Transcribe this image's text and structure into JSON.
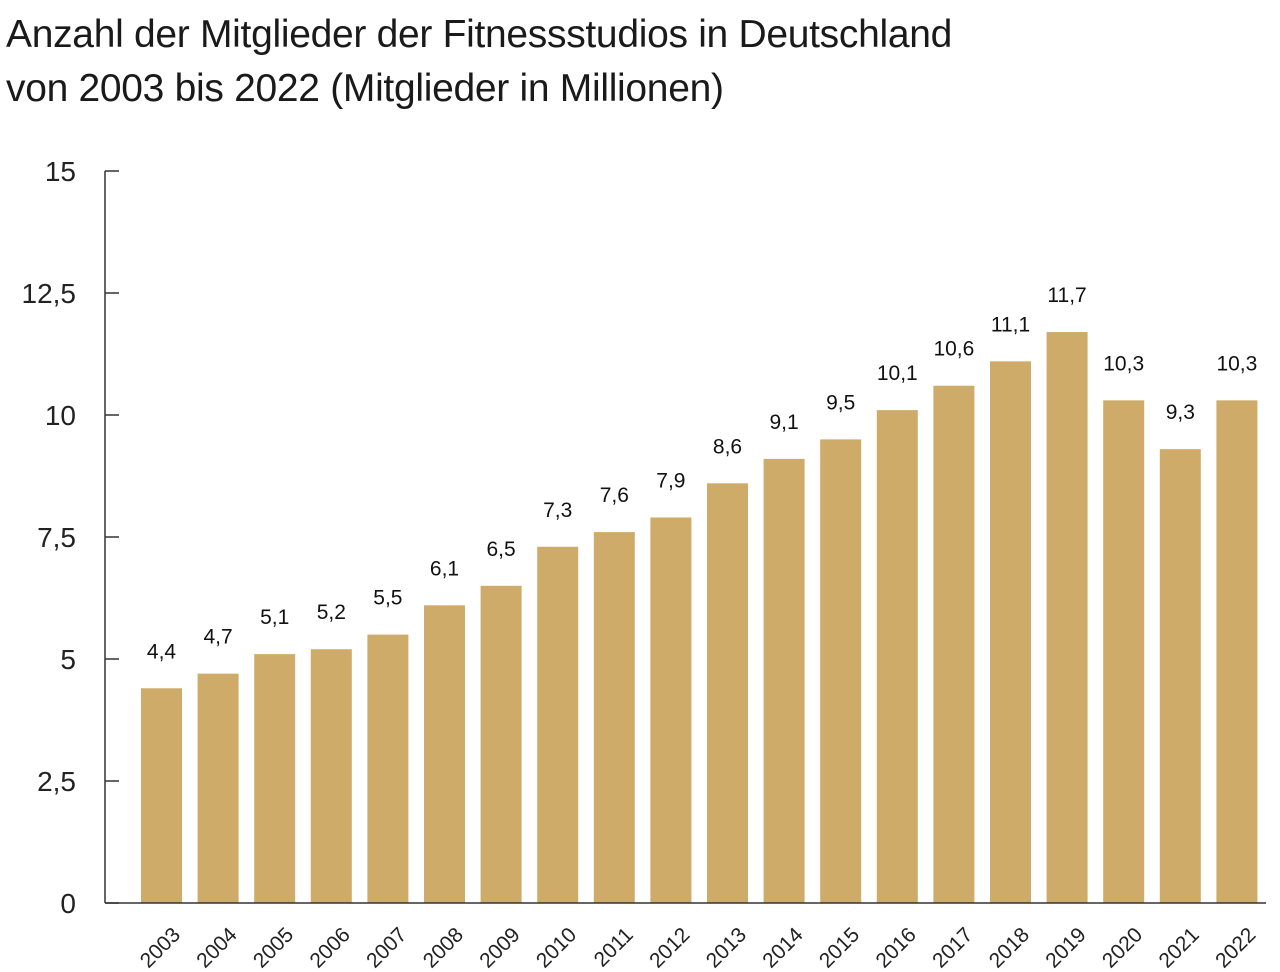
{
  "title_line1": "Anzahl der Mitglieder der Fitnessstudios in Deutschland",
  "title_line2": "von 2003 bis 2022 (Mitglieder in Millionen)",
  "colors": {
    "bar": "#cfab69",
    "axis": "#333333",
    "background": "#ffffff"
  },
  "chart_data": {
    "type": "bar",
    "title": "Anzahl der Mitglieder der Fitnessstudios in Deutschland von 2003 bis 2022 (Mitglieder in Millionen)",
    "xlabel": "",
    "ylabel": "",
    "ylim": [
      0,
      15
    ],
    "yticks": [
      0,
      2.5,
      5,
      7.5,
      10,
      12.5,
      15
    ],
    "ytick_labels": [
      "0",
      "2,5",
      "5",
      "7,5",
      "10",
      "12,5",
      "15"
    ],
    "grid": false,
    "legend": "none",
    "categories": [
      "2003",
      "2004",
      "2005",
      "2006",
      "2007",
      "2008",
      "2009",
      "2010",
      "2011",
      "2012",
      "2013",
      "2014",
      "2015",
      "2016",
      "2017",
      "2018",
      "2019",
      "2020",
      "2021",
      "2022"
    ],
    "values": [
      4.4,
      4.7,
      5.1,
      5.2,
      5.5,
      6.1,
      6.5,
      7.3,
      7.6,
      7.9,
      8.6,
      9.1,
      9.5,
      10.1,
      10.6,
      11.1,
      11.7,
      10.3,
      9.3,
      10.3
    ],
    "value_labels": [
      "4,4",
      "4,7",
      "5,1",
      "5,2",
      "5,5",
      "6,1",
      "6,5",
      "7,3",
      "7,6",
      "7,9",
      "8,6",
      "9,1",
      "9,5",
      "10,1",
      "10,6",
      "11,1",
      "11,7",
      "10,3",
      "9,3",
      "10,3"
    ]
  }
}
